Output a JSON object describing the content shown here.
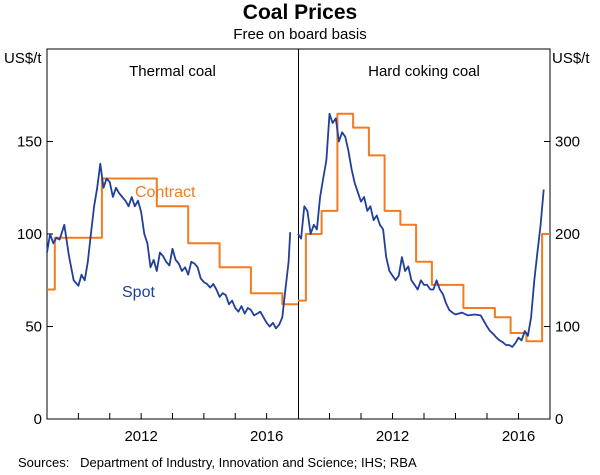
{
  "title": "Coal Prices",
  "subtitle": "Free on board basis",
  "source": "Sources:   Department of Industry, Innovation and Science; IHS; RBA",
  "chart_data": [
    {
      "type": "line",
      "panel_title": "Thermal coal",
      "ylabel": "US$/t",
      "ylim": [
        0,
        200
      ],
      "yticks": [
        0,
        50,
        100,
        150
      ],
      "xlim": [
        2009.0,
        2017.0
      ],
      "xticks": [
        2012,
        2016
      ],
      "grid": false,
      "series": [
        {
          "name": "Contract",
          "color": "#f47b20",
          "step": true,
          "x": [
            2009.0,
            2009.25,
            2009.5,
            2010.25,
            2010.5,
            2010.75,
            2011.25,
            2011.5,
            2012.25,
            2012.5,
            2013.25,
            2013.5,
            2014.25,
            2014.5,
            2015.25,
            2015.5,
            2016.25,
            2016.5,
            2017.0
          ],
          "values": [
            70,
            98,
            98,
            98,
            98,
            130,
            130,
            130,
            130,
            115,
            115,
            95,
            95,
            82,
            82,
            68,
            68,
            62,
            62
          ]
        },
        {
          "name": "Spot",
          "color": "#1f3f9a",
          "step": false,
          "x": [
            2009.0,
            2009.1,
            2009.2,
            2009.3,
            2009.4,
            2009.55,
            2009.7,
            2009.85,
            2010.0,
            2010.1,
            2010.2,
            2010.3,
            2010.4,
            2010.5,
            2010.6,
            2010.7,
            2010.8,
            2010.9,
            2011.0,
            2011.1,
            2011.2,
            2011.3,
            2011.4,
            2011.5,
            2011.6,
            2011.7,
            2011.8,
            2011.9,
            2012.0,
            2012.1,
            2012.2,
            2012.3,
            2012.4,
            2012.5,
            2012.6,
            2012.7,
            2012.8,
            2012.9,
            2013.0,
            2013.1,
            2013.2,
            2013.3,
            2013.4,
            2013.5,
            2013.6,
            2013.7,
            2013.8,
            2013.9,
            2014.0,
            2014.1,
            2014.2,
            2014.3,
            2014.4,
            2014.5,
            2014.6,
            2014.7,
            2014.8,
            2014.9,
            2015.0,
            2015.1,
            2015.2,
            2015.3,
            2015.4,
            2015.5,
            2015.6,
            2015.7,
            2015.8,
            2015.9,
            2016.0,
            2016.1,
            2016.2,
            2016.3,
            2016.4,
            2016.5,
            2016.6,
            2016.7,
            2016.75
          ],
          "values": [
            90,
            100,
            95,
            98,
            97,
            105,
            88,
            75,
            72,
            78,
            75,
            85,
            100,
            115,
            125,
            138,
            125,
            130,
            128,
            120,
            125,
            122,
            120,
            118,
            115,
            120,
            115,
            118,
            112,
            100,
            95,
            82,
            86,
            80,
            90,
            88,
            85,
            83,
            92,
            86,
            84,
            80,
            82,
            78,
            85,
            84,
            82,
            76,
            74,
            73,
            71,
            73,
            70,
            66,
            68,
            67,
            62,
            64,
            60,
            58,
            61,
            57,
            60,
            59,
            56,
            57,
            58,
            55,
            52,
            50,
            52,
            49,
            51,
            55,
            70,
            85,
            101
          ]
        }
      ],
      "annotations": [
        "Contract",
        "Spot"
      ]
    },
    {
      "type": "line",
      "panel_title": "Hard coking coal",
      "ylabel": "US$/t",
      "ylim": [
        0,
        400
      ],
      "yticks": [
        0,
        100,
        200,
        300
      ],
      "xlim": [
        2009.0,
        2017.0
      ],
      "xticks": [
        2012,
        2016
      ],
      "grid": false,
      "series": [
        {
          "name": "Contract",
          "color": "#f47b20",
          "step": true,
          "x": [
            2009.0,
            2009.25,
            2009.5,
            2009.75,
            2010.0,
            2010.25,
            2010.5,
            2010.75,
            2011.0,
            2011.25,
            2011.5,
            2011.75,
            2012.0,
            2012.25,
            2012.5,
            2012.75,
            2013.0,
            2013.25,
            2013.5,
            2013.75,
            2014.0,
            2014.25,
            2014.5,
            2014.75,
            2015.0,
            2015.25,
            2015.5,
            2015.75,
            2016.0,
            2016.25,
            2016.5,
            2016.75,
            2017.0
          ],
          "values": [
            128,
            200,
            200,
            225,
            225,
            330,
            330,
            315,
            315,
            285,
            285,
            225,
            225,
            210,
            210,
            170,
            170,
            145,
            145,
            145,
            145,
            120,
            120,
            120,
            120,
            110,
            110,
            93,
            93,
            84,
            84,
            200,
            200
          ]
        },
        {
          "name": "Spot",
          "color": "#1f3f9a",
          "step": false,
          "x": [
            2009.0,
            2009.1,
            2009.2,
            2009.3,
            2009.4,
            2009.5,
            2009.6,
            2009.7,
            2009.8,
            2009.9,
            2010.0,
            2010.1,
            2010.2,
            2010.3,
            2010.4,
            2010.5,
            2010.6,
            2010.7,
            2010.8,
            2010.9,
            2011.0,
            2011.1,
            2011.2,
            2011.3,
            2011.4,
            2011.5,
            2011.6,
            2011.7,
            2011.8,
            2011.9,
            2012.0,
            2012.1,
            2012.2,
            2012.3,
            2012.4,
            2012.5,
            2012.6,
            2012.7,
            2012.8,
            2012.9,
            2013.0,
            2013.1,
            2013.2,
            2013.3,
            2013.4,
            2013.5,
            2013.6,
            2013.7,
            2013.8,
            2013.9,
            2014.0,
            2014.2,
            2014.4,
            2014.6,
            2014.8,
            2015.0,
            2015.1,
            2015.2,
            2015.3,
            2015.4,
            2015.5,
            2015.6,
            2015.7,
            2015.8,
            2015.9,
            2016.0,
            2016.1,
            2016.2,
            2016.3,
            2016.4,
            2016.5,
            2016.6,
            2016.7,
            2016.8
          ],
          "values": [
            200,
            195,
            230,
            225,
            200,
            210,
            205,
            240,
            260,
            280,
            330,
            320,
            325,
            300,
            310,
            305,
            290,
            270,
            255,
            245,
            235,
            240,
            225,
            230,
            215,
            220,
            210,
            205,
            175,
            160,
            155,
            150,
            155,
            175,
            160,
            165,
            150,
            145,
            140,
            150,
            145,
            145,
            140,
            140,
            150,
            140,
            135,
            125,
            118,
            115,
            113,
            115,
            112,
            113,
            112,
            100,
            95,
            92,
            88,
            85,
            83,
            80,
            80,
            78,
            82,
            88,
            85,
            95,
            90,
            110,
            150,
            180,
            210,
            248
          ]
        }
      ]
    }
  ]
}
